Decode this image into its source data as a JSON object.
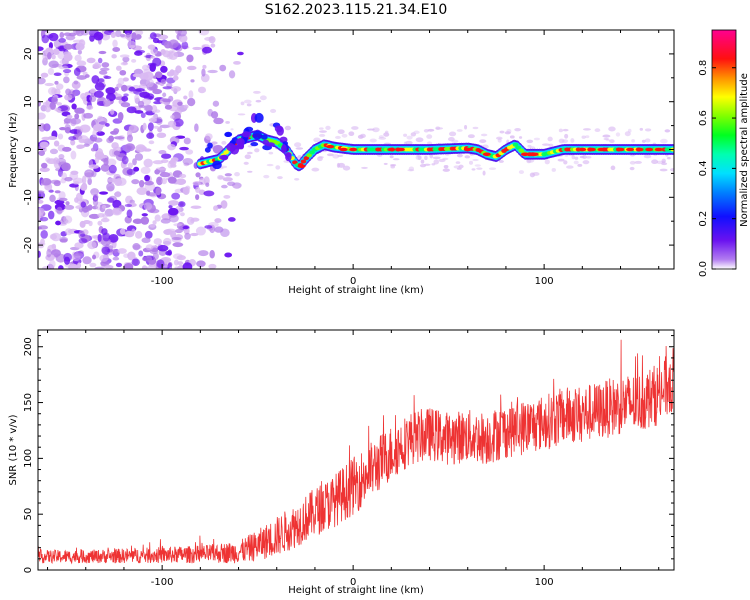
{
  "title": "S162.2023.115.21.34.E10",
  "colors": {
    "snr_line": "#ee3333",
    "scatter_low": "#d9b8f2",
    "scatter_mid": "#b07be8",
    "scatter_high": "#6a12f0",
    "axis": "#000000"
  },
  "chart_data": [
    {
      "type": "heatmap",
      "xlabel": "Height of straight line (km)",
      "ylabel": "Frequency (Hz)",
      "xlim": [
        -165,
        168
      ],
      "ylim": [
        -25,
        25
      ],
      "xticks": [
        -100,
        0,
        100
      ],
      "yticks": [
        -20,
        -10,
        0,
        10,
        20
      ],
      "colorbar": {
        "label": "Normalized spectral amplitude",
        "range": [
          0.0,
          0.95
        ],
        "ticks": [
          0.0,
          0.2,
          0.4,
          0.6,
          0.8
        ],
        "colormap": "rainbow (violet-blue-cyan-green-yellow-red-magenta)"
      },
      "ridge": {
        "description": "dominant frequency band vs height",
        "x": [
          -80,
          -70,
          -60,
          -50,
          -45,
          -40,
          -35,
          -30,
          -28,
          -25,
          -20,
          -15,
          -10,
          0,
          20,
          40,
          60,
          65,
          70,
          75,
          80,
          85,
          90,
          100,
          110,
          120,
          140,
          160,
          168
        ],
        "y": [
          -3,
          -2,
          2,
          3,
          2,
          1.5,
          0,
          -3,
          -3.5,
          -2,
          0,
          1,
          0.5,
          0,
          0,
          0,
          0.3,
          0,
          -1,
          -1.5,
          0,
          1,
          -1,
          -1,
          0,
          0,
          0,
          0,
          0
        ]
      },
      "noise_region": {
        "x_range": [
          -165,
          -70
        ],
        "description": "broadband noise scatter"
      }
    },
    {
      "type": "line",
      "xlabel": "Height of straight line (km)",
      "ylabel": "SNR (10 * v/v)",
      "xlim": [
        -165,
        168
      ],
      "ylim": [
        0,
        215
      ],
      "xticks": [
        -100,
        0,
        100
      ],
      "yticks": [
        0,
        50,
        100,
        150,
        200
      ],
      "series": [
        {
          "trend_x": [
            -165,
            -140,
            -110,
            -80,
            -60,
            -50,
            -40,
            -30,
            -20,
            -10,
            0,
            10,
            20,
            30,
            40,
            50,
            60,
            70,
            80,
            90,
            100,
            110,
            120,
            130,
            140,
            150,
            160,
            168
          ],
          "trend_y": [
            12,
            12,
            13,
            14,
            16,
            22,
            30,
            40,
            52,
            62,
            75,
            90,
            105,
            118,
            122,
            118,
            120,
            118,
            125,
            128,
            132,
            138,
            140,
            143,
            148,
            150,
            158,
            170
          ],
          "noise_amplitude": [
            6,
            6,
            7,
            8,
            10,
            14,
            18,
            20,
            22,
            24,
            26,
            26,
            25,
            24,
            24,
            24,
            24,
            24,
            25,
            25,
            25,
            26,
            26,
            26,
            27,
            27,
            28,
            30
          ]
        }
      ]
    }
  ]
}
